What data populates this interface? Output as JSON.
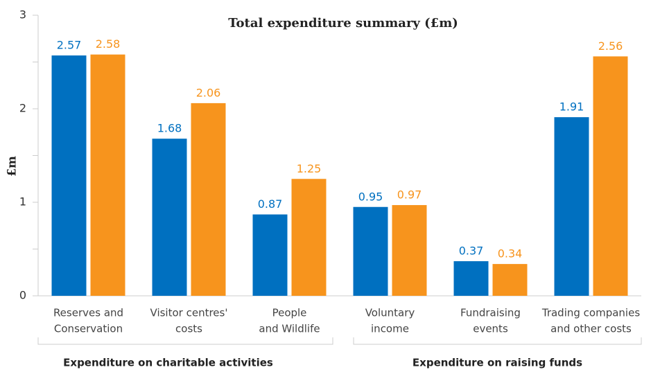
{
  "chart_data": {
    "type": "bar",
    "title": "Total expenditure summary (£m)",
    "y_label": "£m",
    "categories": [
      [
        "Reserves and",
        "Conservation"
      ],
      [
        "Visitor centres'",
        "costs"
      ],
      [
        "People",
        "and Wildlife"
      ],
      [
        "Voluntary",
        "income"
      ],
      [
        "Fundraising",
        "events"
      ],
      [
        "Trading companies",
        "and other costs"
      ]
    ],
    "series": [
      {
        "color": "#0070c0",
        "values": [
          2.57,
          1.68,
          0.87,
          0.95,
          0.37,
          1.91
        ]
      },
      {
        "color": "#f7941d",
        "values": [
          2.58,
          2.06,
          1.25,
          0.97,
          0.34,
          2.56
        ]
      }
    ],
    "groups": [
      {
        "label": "Expenditure on charitable activities"
      },
      {
        "label": "Expenditure on raising funds"
      }
    ],
    "ylim": [
      0,
      3
    ],
    "yticks": [
      0,
      1,
      2,
      3
    ],
    "yminor_ticks": [
      0.5,
      1.5,
      2.5
    ]
  }
}
